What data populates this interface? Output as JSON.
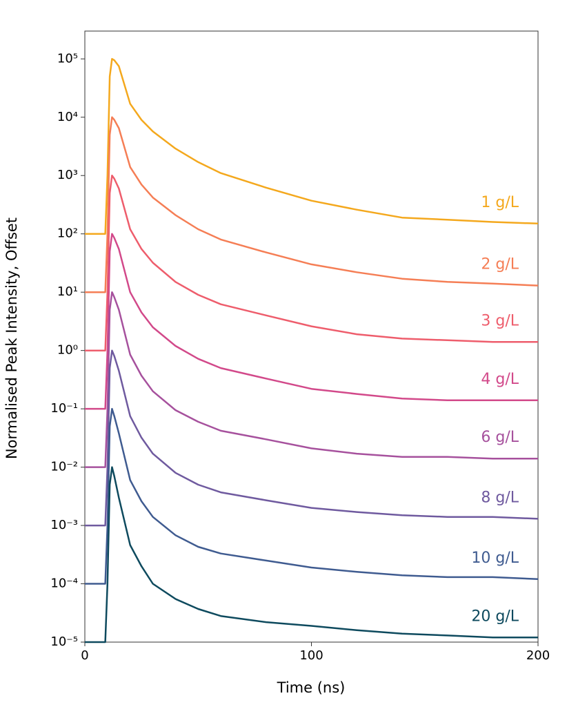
{
  "chart_data": {
    "type": "line",
    "x_label": "Time (ns)",
    "y_label": "Normalised Peak Intensity, Offset",
    "yscale": "log",
    "x": [
      0,
      5,
      9,
      10,
      11,
      12,
      13,
      15,
      20,
      25,
      30,
      40,
      50,
      60,
      80,
      100,
      120,
      140,
      160,
      180,
      200
    ],
    "xlim": [
      0,
      200
    ],
    "xticks": [
      0,
      100,
      200
    ],
    "ylim": [
      1e-05,
      300000
    ],
    "yticks": [
      {
        "value": 1e-05,
        "label": "10⁻⁵"
      },
      {
        "value": 0.0001,
        "label": "10⁻⁴"
      },
      {
        "value": 0.001,
        "label": "10⁻³"
      },
      {
        "value": 0.01,
        "label": "10⁻²"
      },
      {
        "value": 0.1,
        "label": "10⁻¹"
      },
      {
        "value": 1,
        "label": "10⁰"
      },
      {
        "value": 10,
        "label": "10¹"
      },
      {
        "value": 100,
        "label": "10²"
      },
      {
        "value": 1000,
        "label": "10³"
      },
      {
        "value": 10000,
        "label": "10⁴"
      },
      {
        "value": 100000,
        "label": "10⁵"
      }
    ],
    "series": [
      {
        "name": "1 g/L",
        "color": "#f4a81d",
        "values": [
          100,
          100,
          100,
          1000,
          50000,
          100000,
          95000,
          75000,
          17000,
          9000,
          5700,
          2900,
          1700,
          1100,
          620,
          370,
          260,
          190,
          175,
          160,
          150
        ]
      },
      {
        "name": "2 g/L",
        "color": "#f57e55",
        "values": [
          10,
          10,
          10,
          100,
          5000,
          10000,
          9000,
          6500,
          1400,
          700,
          420,
          210,
          120,
          80,
          48,
          30,
          22,
          17,
          15,
          14,
          13
        ]
      },
      {
        "name": "3 g/L",
        "color": "#ee5d6c",
        "values": [
          1,
          1,
          1,
          10,
          500,
          1000,
          880,
          600,
          120,
          55,
          32,
          15,
          9,
          6.2,
          4,
          2.6,
          1.9,
          1.6,
          1.5,
          1.4,
          1.4
        ]
      },
      {
        "name": "4 g/L",
        "color": "#d2498a",
        "values": [
          0.1,
          0.1,
          0.1,
          1,
          50,
          100,
          85,
          55,
          10,
          4.5,
          2.5,
          1.2,
          0.72,
          0.5,
          0.33,
          0.22,
          0.18,
          0.15,
          0.14,
          0.14,
          0.14
        ]
      },
      {
        "name": "6 g/L",
        "color": "#a6519d",
        "values": [
          0.01,
          0.01,
          0.01,
          0.1,
          5,
          10,
          8.2,
          5,
          0.85,
          0.37,
          0.2,
          0.095,
          0.06,
          0.042,
          0.03,
          0.021,
          0.017,
          0.015,
          0.015,
          0.014,
          0.014
        ]
      },
      {
        "name": "8 g/L",
        "color": "#6f5a9f",
        "values": [
          0.001,
          0.001,
          0.001,
          0.01,
          0.5,
          1,
          0.8,
          0.45,
          0.075,
          0.032,
          0.017,
          0.008,
          0.005,
          0.0037,
          0.0027,
          0.002,
          0.0017,
          0.0015,
          0.0014,
          0.0014,
          0.0013
        ]
      },
      {
        "name": "10 g/L",
        "color": "#3f5b90",
        "values": [
          0.0001,
          0.0001,
          0.0001,
          0.001,
          0.05,
          0.1,
          0.075,
          0.038,
          0.006,
          0.0026,
          0.0014,
          0.00068,
          0.00043,
          0.00033,
          0.00025,
          0.00019,
          0.00016,
          0.00014,
          0.00013,
          0.00013,
          0.00012
        ]
      },
      {
        "name": "20 g/L",
        "color": "#0e4a5e",
        "values": [
          1e-05,
          1e-05,
          1e-05,
          0.0001,
          0.005,
          0.01,
          0.007,
          0.003,
          0.00046,
          0.0002,
          0.0001,
          5.5e-05,
          3.7e-05,
          2.8e-05,
          2.2e-05,
          1.9e-05,
          1.6e-05,
          1.4e-05,
          1.3e-05,
          1.2e-05,
          1.2e-05
        ]
      }
    ]
  }
}
